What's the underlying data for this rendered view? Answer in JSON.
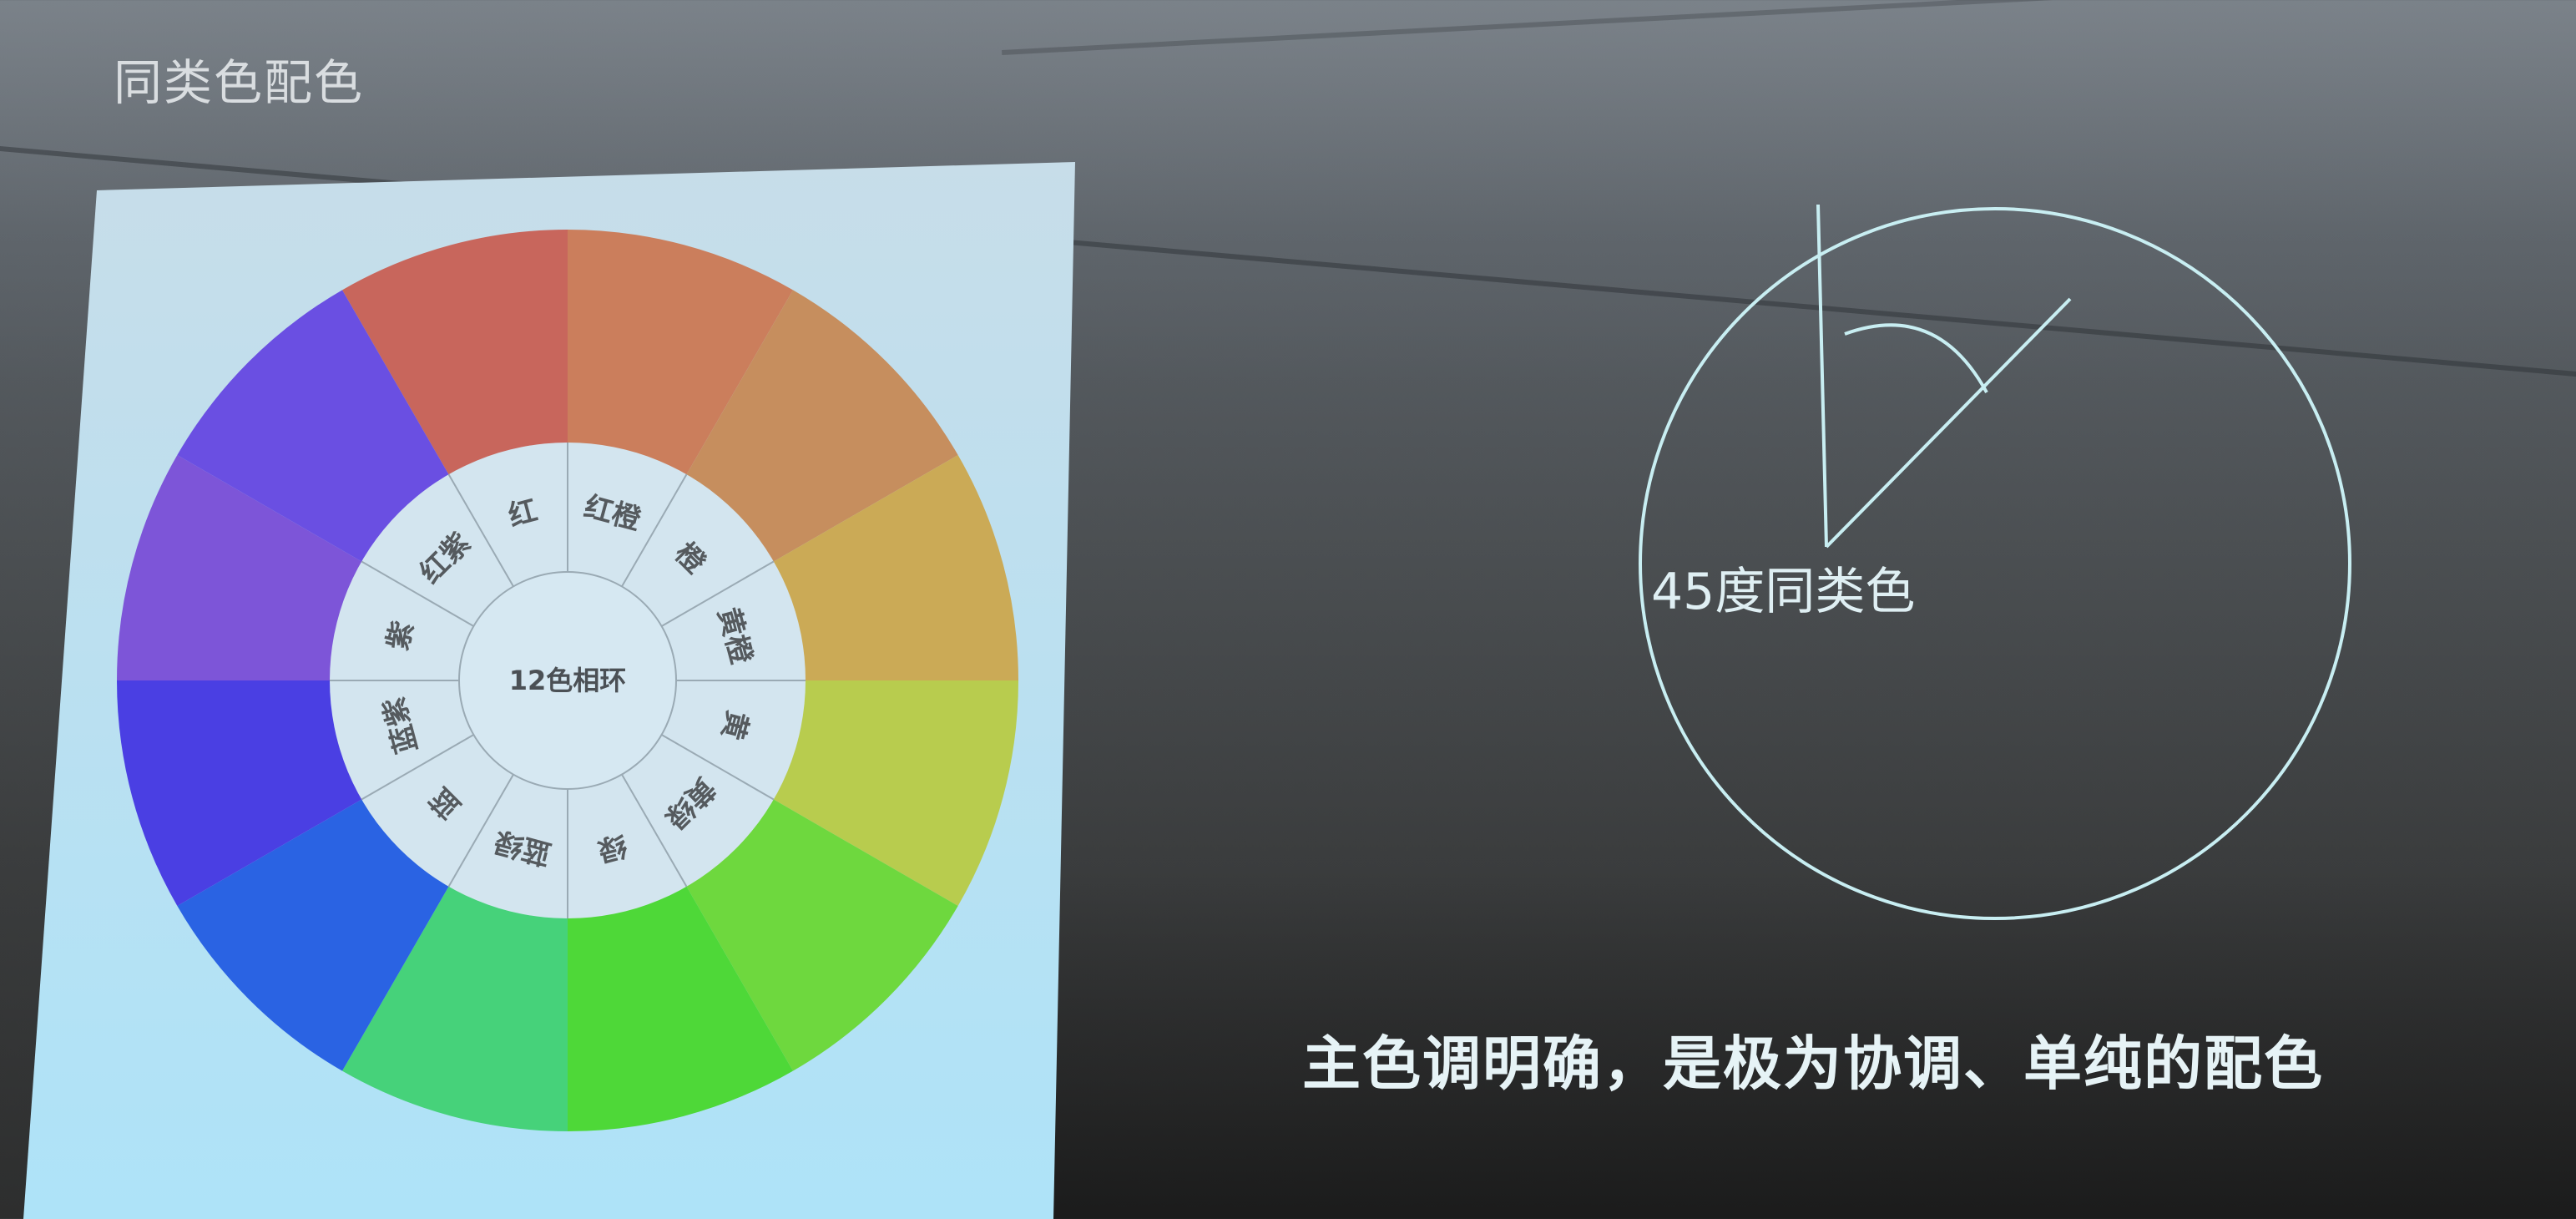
{
  "slide": {
    "title": "同类色配色",
    "diagram_caption": "45度同类色",
    "bottom_caption": "主色调明确，是极为协调、单纯的配色"
  },
  "wheel": {
    "center_label": "12色相环",
    "labels": [
      "红",
      "红橙",
      "橙",
      "黄橙",
      "黄",
      "黄绿",
      "绿",
      "蓝绿",
      "蓝",
      "蓝紫",
      "紫",
      "红紫"
    ],
    "colors": [
      "#c8665c",
      "#cb7e5c",
      "#c68e5e",
      "#cbaa56",
      "#b8cc4e",
      "#6ed83e",
      "#4ed838",
      "#46d27a",
      "#2a63e3",
      "#4a3fe3",
      "#7d55d8",
      "#6a4fe2"
    ]
  },
  "diagram": {
    "angle_degrees": 45
  }
}
